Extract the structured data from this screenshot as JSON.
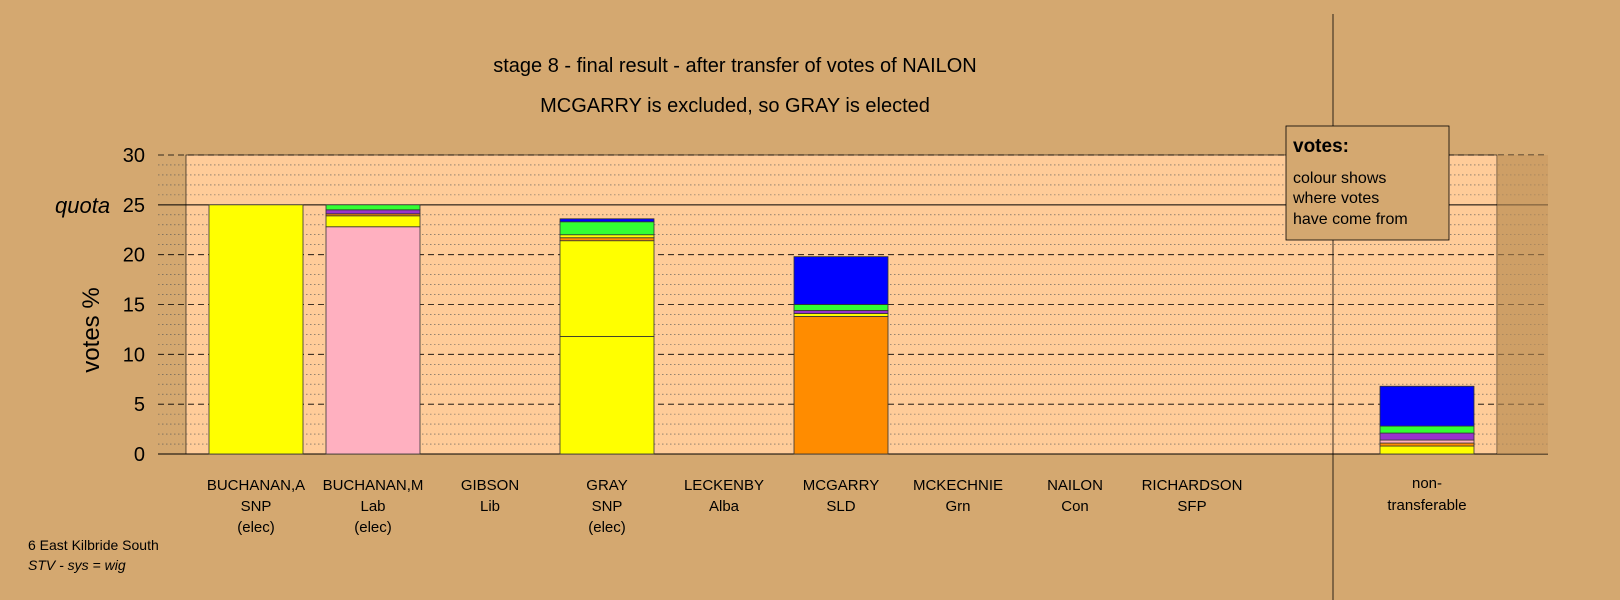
{
  "chart_data": {
    "type": "bar",
    "stacked": true,
    "title": "stage 8 - final result - after transfer of votes of NAILON",
    "subtitle": "MCGARRY is excluded, so GRAY is elected",
    "ylabel": "votes %",
    "ylim": [
      0,
      30
    ],
    "yticks": [
      0,
      5,
      10,
      15,
      20,
      25,
      30
    ],
    "quota": 25,
    "quota_label": "quota",
    "grid": true,
    "legend": {
      "position": "top-right",
      "title": "votes:",
      "lines": [
        "colour shows",
        "where votes",
        "have come from"
      ]
    },
    "candidates": [
      {
        "name": "BUCHANAN,A",
        "party": "SNP",
        "status": "(elec)",
        "segments": [
          {
            "value": 25.0,
            "color": "#ffff00"
          }
        ]
      },
      {
        "name": "BUCHANAN,M",
        "party": "Lab",
        "status": "(elec)",
        "segments": [
          {
            "value": 22.8,
            "color": "#ffb0c0"
          },
          {
            "value": 1.1,
            "color": "#ffff00"
          },
          {
            "value": 0.2,
            "color": "#ff8c00"
          },
          {
            "value": 0.4,
            "color": "#9933cc"
          },
          {
            "value": 0.5,
            "color": "#33ff33"
          }
        ]
      },
      {
        "name": "GIBSON",
        "party": "Lib",
        "status": "",
        "segments": []
      },
      {
        "name": "GRAY",
        "party": "SNP",
        "status": "(elec)",
        "segments": [
          {
            "value": 11.8,
            "color": "#ffff00"
          },
          {
            "value": 9.6,
            "color": "#ffff00"
          },
          {
            "value": 0.3,
            "color": "#ff8c00"
          },
          {
            "value": 0.3,
            "color": "#ffff00"
          },
          {
            "value": 1.3,
            "color": "#33ff33"
          },
          {
            "value": 0.3,
            "color": "#0000ff"
          }
        ]
      },
      {
        "name": "LECKENBY",
        "party": "Alba",
        "status": "",
        "segments": []
      },
      {
        "name": "MCGARRY",
        "party": "SLD",
        "status": "",
        "segments": [
          {
            "value": 13.8,
            "color": "#ff8c00"
          },
          {
            "value": 0.3,
            "color": "#ffff00"
          },
          {
            "value": 0.3,
            "color": "#9933cc"
          },
          {
            "value": 0.6,
            "color": "#33ff33"
          },
          {
            "value": 4.8,
            "color": "#0000ff"
          }
        ]
      },
      {
        "name": "MCKECHNIE",
        "party": "Grn",
        "status": "",
        "segments": []
      },
      {
        "name": "NAILON",
        "party": "Con",
        "status": "",
        "segments": []
      },
      {
        "name": "RICHARDSON",
        "party": "SFP",
        "status": "",
        "segments": []
      }
    ],
    "nontransferable": {
      "label_lines": [
        "non-",
        "transferable"
      ],
      "segments": [
        {
          "value": 0.8,
          "color": "#ffff00"
        },
        {
          "value": 0.3,
          "color": "#ff8c00"
        },
        {
          "value": 0.3,
          "color": "#ffb0c0"
        },
        {
          "value": 0.7,
          "color": "#9933cc"
        },
        {
          "value": 0.7,
          "color": "#33ff33"
        },
        {
          "value": 4.0,
          "color": "#0000ff"
        }
      ]
    }
  },
  "footer": {
    "line1": "6 East Kilbride South",
    "line2": "STV - sys = wig"
  }
}
